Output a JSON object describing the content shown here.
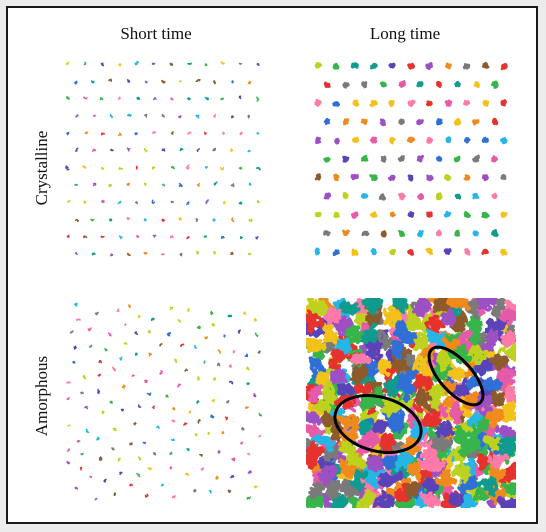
{
  "columns": [
    "Short time",
    "Long time"
  ],
  "rows": [
    "Crystalline",
    "Amorphous"
  ],
  "palette": [
    "#e5322d",
    "#f08a1c",
    "#f2c21b",
    "#bcd21f",
    "#38b54a",
    "#0f9b8e",
    "#26b6e6",
    "#2f6fd6",
    "#5a43b8",
    "#9d4fc4",
    "#e65aa8",
    "#ff7aa8",
    "#7a7a7a",
    "#8c5a2b"
  ],
  "panels": [
    {
      "id": "crystalline-short",
      "lattice": "hex",
      "blob": "small"
    },
    {
      "id": "crystalline-long",
      "lattice": "hex",
      "blob": "large"
    },
    {
      "id": "amorphous-short",
      "lattice": "random",
      "blob": "small"
    },
    {
      "id": "amorphous-long",
      "lattice": "random",
      "blob": "dense",
      "highlights": 2
    }
  ]
}
